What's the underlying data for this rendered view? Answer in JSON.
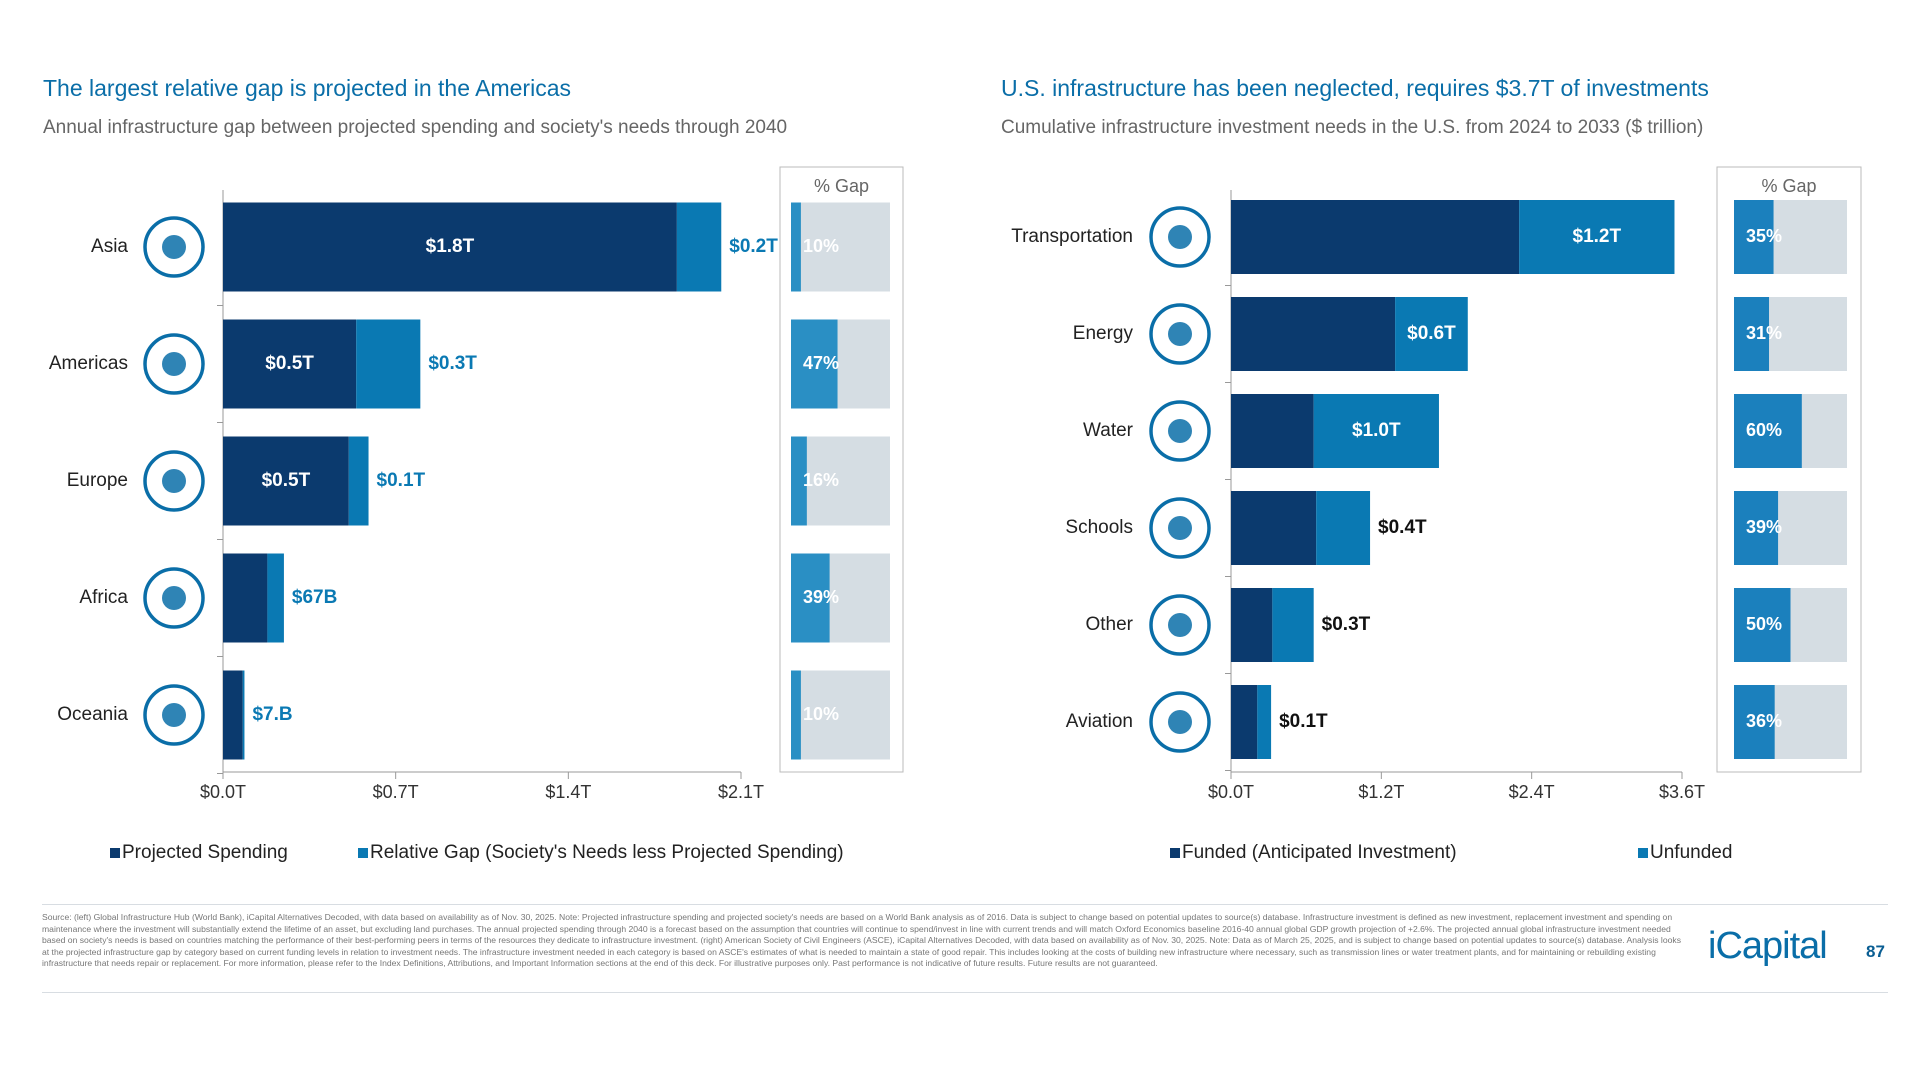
{
  "chart_data": [
    {
      "type": "bar",
      "orientation": "horizontal",
      "stacked": true,
      "title": "The largest relative gap is projected in the Americas",
      "subtitle": "Annual infrastructure gap between projected spending and society's needs through 2040",
      "categories": [
        "Asia",
        "Americas",
        "Europe",
        "Africa",
        "Oceania"
      ],
      "series": [
        {
          "name": "Projected Spending",
          "color": "#0b3a6e",
          "values": [
            1.84,
            0.54,
            0.51,
            0.18,
            0.08
          ],
          "value_labels": [
            "$1.8T",
            "$0.5T",
            "$0.5T",
            null,
            null
          ]
        },
        {
          "name": "Relative Gap (Society's Needs less Projected Spending)",
          "color": "#0a79b3",
          "values": [
            0.18,
            0.26,
            0.08,
            0.067,
            0.007
          ],
          "value_labels": [
            "$0.2T",
            "$0.3T",
            "$0.1T",
            "$67B",
            "$7.B"
          ]
        }
      ],
      "xlim": [
        0,
        2.1
      ],
      "xticks": [
        {
          "value": 0,
          "label": "$0.0T"
        },
        {
          "value": 0.7,
          "label": "$0.7T"
        },
        {
          "value": 1.4,
          "label": "$1.4T"
        },
        {
          "value": 2.1,
          "label": "$2.1T"
        }
      ],
      "gap": {
        "title": "% Gap",
        "color": "#2a8fc4",
        "track_color": "#d5dde3",
        "values": [
          10,
          47,
          16,
          39,
          10
        ],
        "value_labels": [
          "10%",
          "47%",
          "16%",
          "39%",
          "10%"
        ]
      }
    },
    {
      "type": "bar",
      "orientation": "horizontal",
      "stacked": true,
      "title": "U.S. infrastructure has been neglected, requires $3.7T of investments",
      "subtitle": "Cumulative infrastructure investment needs in the U.S. from 2024 to 2033 ($ trillion)",
      "categories": [
        "Transportation",
        "Energy",
        "Water",
        "Schools",
        "Other",
        "Aviation"
      ],
      "series": [
        {
          "name": "Funded (Anticipated Investment)",
          "color": "#0b3a6e",
          "values": [
            2.3,
            1.31,
            0.66,
            0.68,
            0.33,
            0.21
          ]
        },
        {
          "name": "Unfunded",
          "color": "#0a79b3",
          "values": [
            1.24,
            0.58,
            1.0,
            0.43,
            0.33,
            0.11
          ],
          "value_labels": [
            "$1.2T",
            "$0.6T",
            "$1.0T",
            "$0.4T",
            "$0.3T",
            "$0.1T"
          ]
        }
      ],
      "xlim": [
        0,
        3.6
      ],
      "xticks": [
        {
          "value": 0,
          "label": "$0.0T"
        },
        {
          "value": 1.2,
          "label": "$1.2T"
        },
        {
          "value": 2.4,
          "label": "$2.4T"
        },
        {
          "value": 3.6,
          "label": "$3.6T"
        }
      ],
      "gap": {
        "title": "% Gap",
        "color": "#1b80bd",
        "track_color": "#d5dde3",
        "values": [
          35,
          31,
          60,
          39,
          50,
          36
        ],
        "value_labels": [
          "35%",
          "31%",
          "60%",
          "39%",
          "50%",
          "36%"
        ]
      }
    }
  ],
  "footer": {
    "source": "Source: (left) Global Infrastructure Hub (World Bank), iCapital Alternatives Decoded, with data based on availability as of Nov. 30, 2025. Note: Projected infrastructure spending and projected society's needs are based on a World Bank analysis as of 2016. Data is subject to change based on potential updates to source(s) database. Infrastructure investment is defined as new investment, replacement investment and spending on maintenance where the investment will substantially extend the lifetime of an asset, but excluding land purchases. The annual projected spending through 2040 is a forecast based on the assumption that countries will continue to spend/invest in line with current trends and will match Oxford Economics baseline 2016-40 annual global GDP growth projection of +2.6%. The projected annual global infrastructure investment needed based on society's needs is based on countries matching the performance of their best-performing peers in terms of the resources they dedicate to infrastructure investment. (right) American Society of Civil Engineers (ASCE), iCapital Alternatives Decoded, with data based on availability as of Nov. 30, 2025. Note: Data as of March 25, 2025, and is subject to change based on potential updates to source(s) database. Analysis looks at the projected infrastructure gap by category based on current funding levels in relation to investment needs. The infrastructure investment needed in each category is based on ASCE's estimates of what is needed to maintain a state of good repair. This includes looking at the costs of building new infrastructure where necessary, such as transmission lines or water treatment plants, and for maintaining or rebuilding existing infrastructure that needs repair or replacement. For more information, please refer to the Index Definitions, Attributions, and Important Information sections at the end of this deck. For illustrative purposes only. Past performance is not indicative of future results. Future results are not guaranteed.",
    "logo": "iCapital",
    "page": "87"
  }
}
